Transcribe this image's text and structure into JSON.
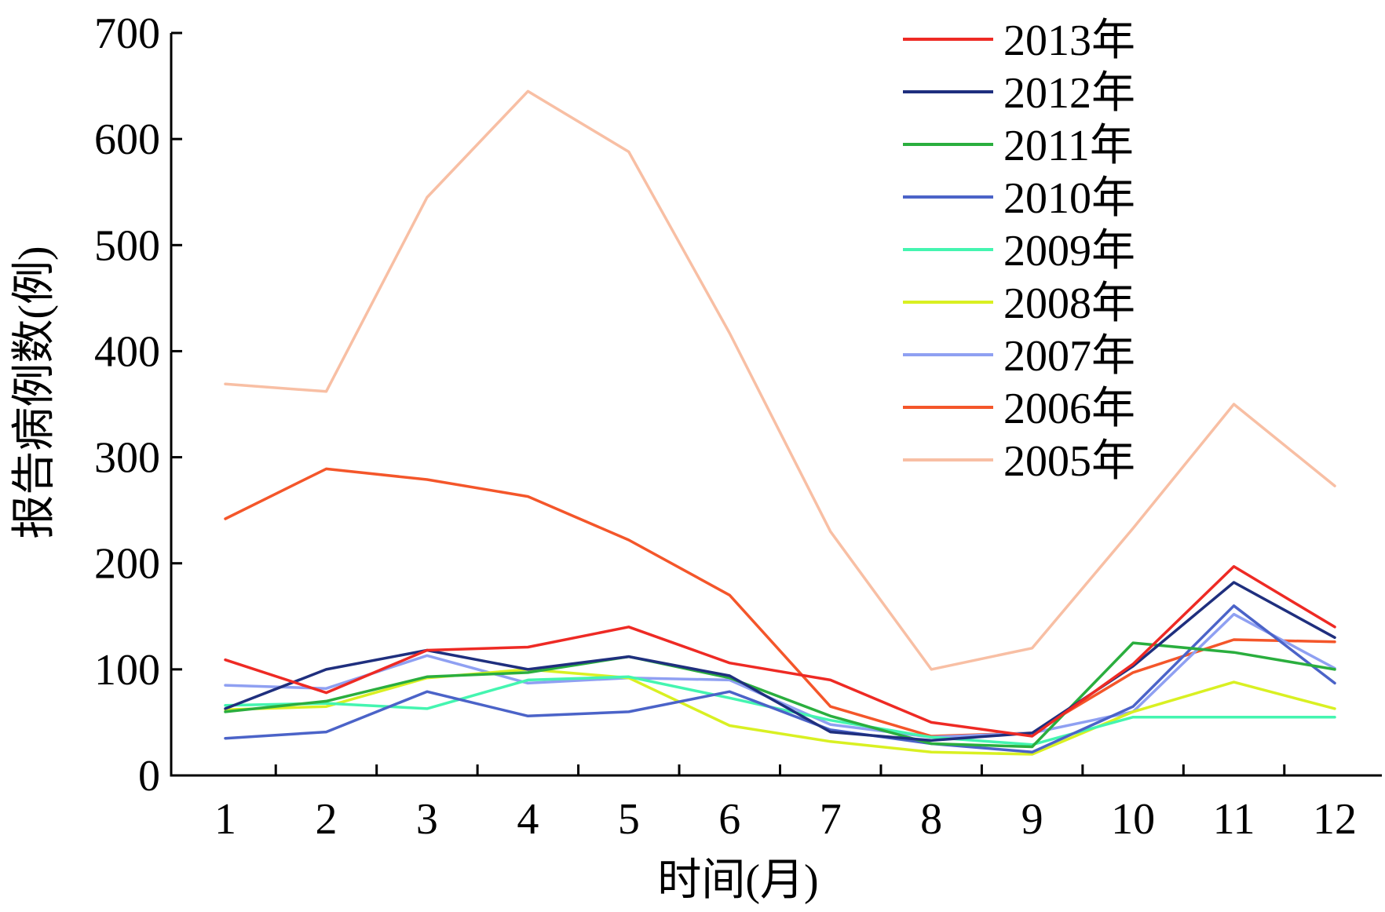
{
  "chart_data": {
    "type": "line",
    "xlabel": "时间(月)",
    "ylabel": "报告病例数(例)",
    "ylim": [
      0,
      700
    ],
    "y_ticks": [
      0,
      100,
      200,
      300,
      400,
      500,
      600,
      700
    ],
    "x": [
      1,
      2,
      3,
      4,
      5,
      6,
      7,
      8,
      9,
      10,
      11,
      12
    ],
    "x_tick_labels": [
      "1",
      "2",
      "3",
      "4",
      "5",
      "6",
      "7",
      "8",
      "9",
      "10",
      "11",
      "12"
    ],
    "legend_position": "top-right",
    "grid": false,
    "series": [
      {
        "name": "2013年",
        "color": "#ee2a24",
        "values": [
          109,
          78,
          118,
          121,
          140,
          106,
          90,
          50,
          37,
          105,
          197,
          140
        ]
      },
      {
        "name": "2012年",
        "color": "#1f2f7e",
        "values": [
          63,
          100,
          118,
          100,
          112,
          94,
          41,
          33,
          40,
          103,
          182,
          130
        ]
      },
      {
        "name": "2011年",
        "color": "#2aae3e",
        "values": [
          60,
          70,
          93,
          97,
          112,
          92,
          56,
          30,
          27,
          125,
          116,
          100
        ]
      },
      {
        "name": "2010年",
        "color": "#4b63c8",
        "values": [
          35,
          41,
          79,
          56,
          60,
          79,
          43,
          30,
          22,
          65,
          160,
          87
        ]
      },
      {
        "name": "2009年",
        "color": "#44f5b0",
        "values": [
          66,
          68,
          63,
          90,
          93,
          73,
          52,
          36,
          29,
          55,
          55,
          55
        ]
      },
      {
        "name": "2008年",
        "color": "#d9f022",
        "values": [
          62,
          65,
          92,
          100,
          92,
          47,
          32,
          22,
          20,
          60,
          88,
          63
        ]
      },
      {
        "name": "2007年",
        "color": "#8fa0f2",
        "values": [
          85,
          82,
          113,
          87,
          92,
          90,
          48,
          36,
          40,
          60,
          152,
          101
        ]
      },
      {
        "name": "2006年",
        "color": "#f4562a",
        "values": [
          242,
          289,
          279,
          263,
          222,
          170,
          65,
          37,
          40,
          97,
          128,
          126
        ]
      },
      {
        "name": "2005年",
        "color": "#f8bfa4",
        "values": [
          369,
          362,
          545,
          645,
          588,
          417,
          230,
          100,
          120,
          233,
          350,
          273
        ]
      }
    ]
  }
}
